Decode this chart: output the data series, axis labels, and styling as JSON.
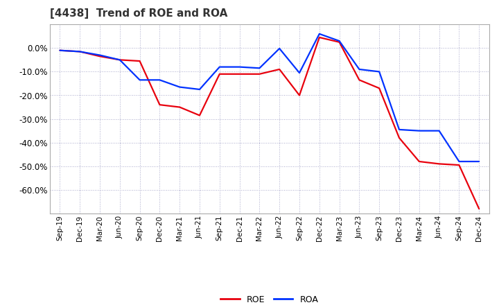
{
  "title": "[4438]  Trend of ROE and ROA",
  "x_labels": [
    "Sep-19",
    "Dec-19",
    "Mar-20",
    "Jun-20",
    "Sep-20",
    "Dec-20",
    "Mar-21",
    "Jun-21",
    "Sep-21",
    "Dec-21",
    "Mar-22",
    "Jun-22",
    "Sep-22",
    "Dec-22",
    "Mar-23",
    "Jun-23",
    "Sep-23",
    "Dec-23",
    "Mar-24",
    "Jun-24",
    "Sep-24",
    "Dec-24"
  ],
  "roe": [
    -1.0,
    -1.5,
    -3.5,
    -5.0,
    -5.5,
    -24.0,
    -25.0,
    -28.5,
    -11.0,
    -11.0,
    -11.0,
    -9.0,
    -20.0,
    4.5,
    2.5,
    -13.5,
    -17.0,
    -38.0,
    -48.0,
    -49.0,
    -49.5,
    -68.0
  ],
  "roa": [
    -1.0,
    -1.5,
    -3.0,
    -5.0,
    -13.5,
    -13.5,
    -16.5,
    -17.5,
    -8.0,
    -8.0,
    -8.5,
    -0.2,
    -10.5,
    6.0,
    3.0,
    -9.0,
    -10.0,
    -34.5,
    -35.0,
    -35.0,
    -48.0,
    -48.0
  ],
  "roe_color": "#e8000d",
  "roa_color": "#0032ff",
  "bg_color": "#ffffff",
  "grid_color": "#aaaacc",
  "ylim": [
    -70,
    10
  ],
  "yticks": [
    0,
    -10,
    -20,
    -30,
    -40,
    -50,
    -60
  ],
  "legend_labels": [
    "ROE",
    "ROA"
  ],
  "line_width": 1.6,
  "title_color": "#333333"
}
